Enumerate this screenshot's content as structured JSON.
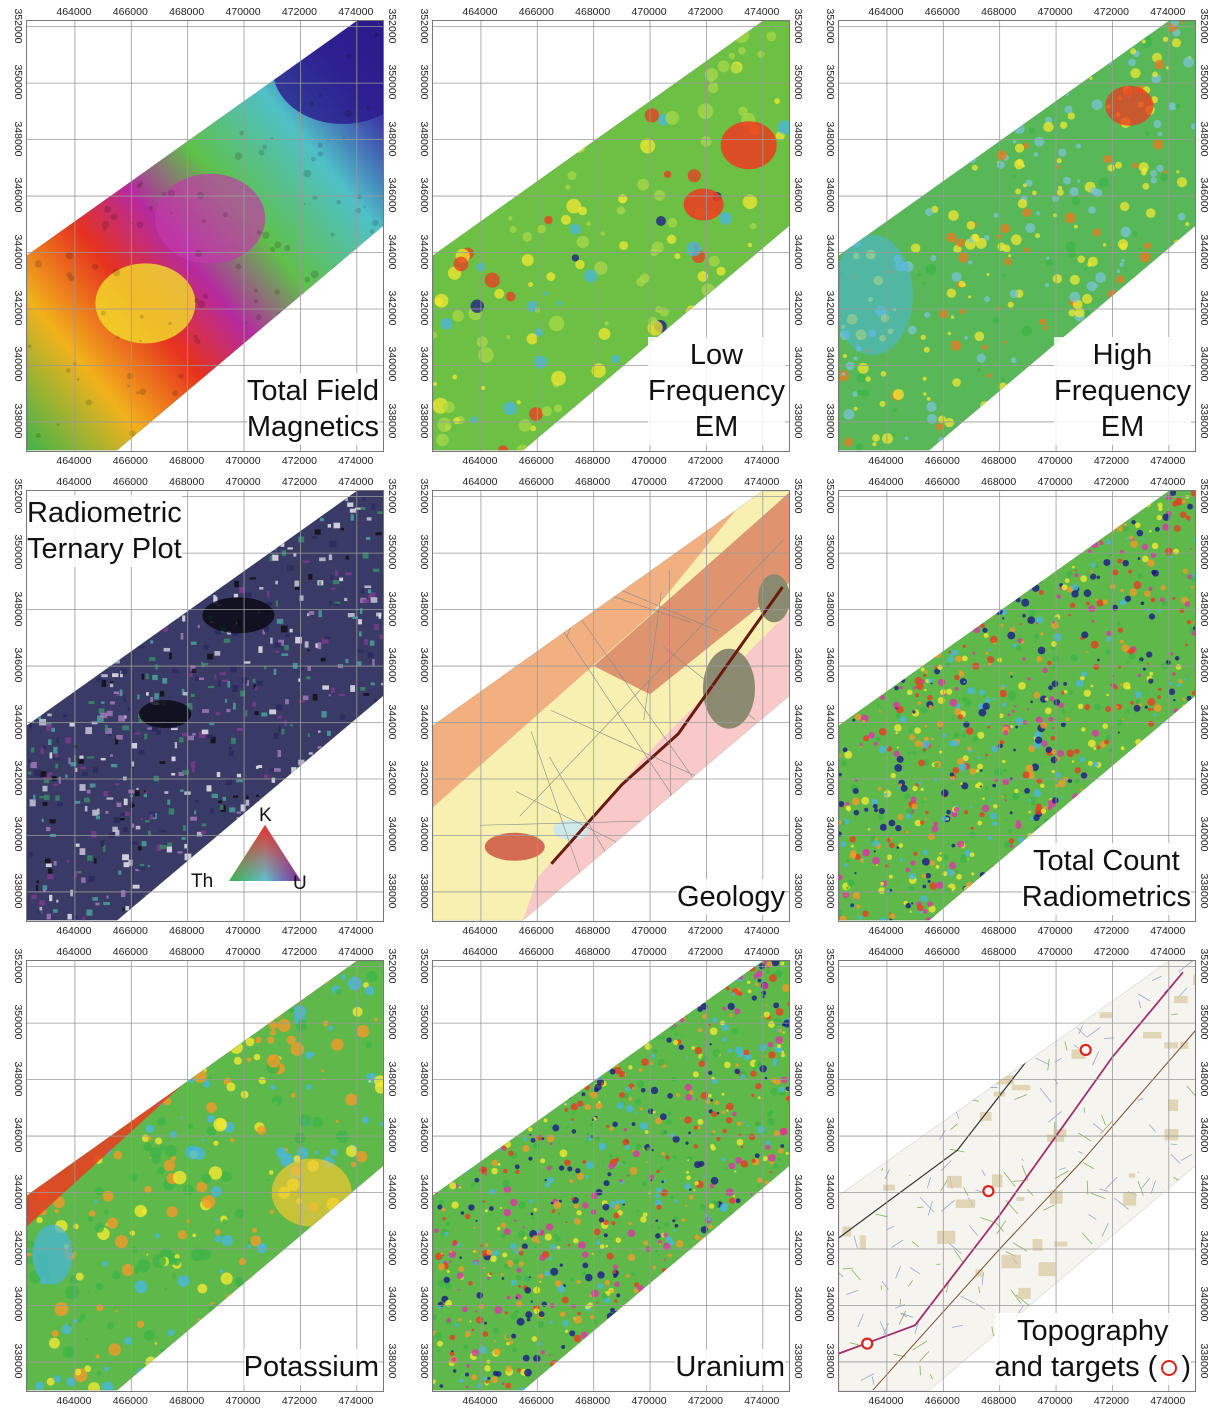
{
  "axes": {
    "x_ticks": [
      "464000",
      "466000",
      "468000",
      "470000",
      "472000",
      "474000"
    ],
    "y_ticks": [
      "352000",
      "350000",
      "348000",
      "346000",
      "344000",
      "342000",
      "340000",
      "338000"
    ]
  },
  "panels": [
    {
      "id": "total-field-magnetics",
      "label": [
        "Total Field",
        "Magnetics"
      ],
      "style": "magnetics"
    },
    {
      "id": "low-frequency-em",
      "label": [
        "Low",
        "Frequency",
        "EM"
      ],
      "style": "lfem"
    },
    {
      "id": "high-frequency-em",
      "label": [
        "High",
        "Frequency",
        "EM"
      ],
      "style": "hfem"
    },
    {
      "id": "radiometric-ternary-plot",
      "label": [
        "Radiometric",
        "Ternary Plot"
      ],
      "style": "ternary",
      "ternary_labels": {
        "top": "K",
        "left": "Th",
        "right": "U"
      }
    },
    {
      "id": "geology",
      "label": [
        "Geology"
      ],
      "style": "geology"
    },
    {
      "id": "total-count-radiometrics",
      "label": [
        "Total Count",
        "Radiometrics"
      ],
      "style": "noise"
    },
    {
      "id": "potassium",
      "label": [
        "Potassium"
      ],
      "style": "potassium"
    },
    {
      "id": "uranium",
      "label": [
        "Uranium"
      ],
      "style": "noise"
    },
    {
      "id": "topography-and-targets",
      "label": [
        "Topography",
        "and targets ("
      ],
      "label_suffix": ")",
      "style": "topo",
      "targets": [
        {
          "x": 471050,
          "y": 349050
        },
        {
          "x": 467600,
          "y": 344050
        },
        {
          "x": 463300,
          "y": 338650
        }
      ]
    }
  ],
  "colors": {
    "magnetics": [
      "#2a1a8c",
      "#55c8e6",
      "#3cb44a",
      "#f5e62a",
      "#ef2d1e",
      "#c22ca6"
    ],
    "em": [
      "#1a1a8a",
      "#49b6e0",
      "#3eb446",
      "#f2e830",
      "#ee3a20",
      "#e033a8"
    ],
    "geology": [
      "#f7f0b0",
      "#f2b080",
      "#d36c52",
      "#8b8a70",
      "#f9c9c9",
      "#cfe8ea"
    ],
    "target": "#e0201a"
  }
}
